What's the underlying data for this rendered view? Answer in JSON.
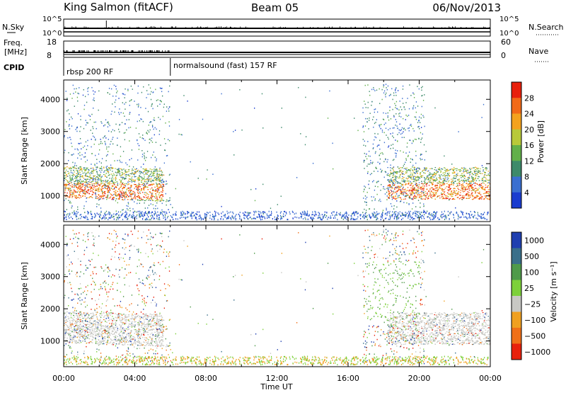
{
  "header": {
    "station": "King Salmon (fitACF)",
    "beam": "Beam 05",
    "date": "06/Nov/2013"
  },
  "summary_panels": {
    "nsky_label": "N.Sky",
    "nsky_ticks": [
      "10^5",
      "10^0"
    ],
    "nsearch_label": "N.Search",
    "nsearch_ticks": [
      "10^5",
      "10^0"
    ],
    "freq_label_1": "Freq.",
    "freq_label_2": "[MHz]",
    "freq_ticks": [
      "18",
      "8"
    ],
    "nave_label": "Nave",
    "nave_ticks": [
      "60",
      "0"
    ],
    "cpid_label": "CPID",
    "cpid_segments": [
      {
        "label": "rbsp 200 RF",
        "start_hour": 0,
        "end_hour": 6
      },
      {
        "label": "normalsound (fast) 157 RF",
        "start_hour": 6,
        "end_hour": 24
      }
    ]
  },
  "chart_data": [
    {
      "type": "heatmap",
      "quantity": "Power",
      "ylabel": "Slant Range [km]",
      "xlabel": "Time UT",
      "xlim_hours": [
        0,
        24
      ],
      "x_ticks": [
        "00:00",
        "04:00",
        "08:00",
        "12:00",
        "16:00",
        "20:00",
        "00:00"
      ],
      "ylim": [
        200,
        4600
      ],
      "y_ticks": [
        1000,
        2000,
        3000,
        4000
      ],
      "colorbar": {
        "label": "Power [dB]",
        "ticks": [
          4,
          8,
          12,
          16,
          20,
          24,
          28
        ],
        "range": [
          0,
          30
        ],
        "colors": [
          "#1a3ccf",
          "#3a6fd0",
          "#3d8a6a",
          "#62b04a",
          "#b8c93a",
          "#f4a21e",
          "#f26a18",
          "#e8200c"
        ]
      }
    },
    {
      "type": "heatmap",
      "quantity": "Velocity",
      "ylabel": "Slant Range [km]",
      "xlabel": "Time UT",
      "xlim_hours": [
        0,
        24
      ],
      "x_ticks": [
        "00:00",
        "04:00",
        "08:00",
        "12:00",
        "16:00",
        "20:00",
        "00:00"
      ],
      "ylim": [
        200,
        4600
      ],
      "y_ticks": [
        1000,
        2000,
        3000,
        4000
      ],
      "colorbar": {
        "label": "Velocity [m s⁻¹]",
        "ticks": [
          "1000",
          "500",
          "100",
          "25",
          "−25",
          "−100",
          "−500",
          "−1000"
        ],
        "colors": [
          "#1f3fb0",
          "#3a6f8a",
          "#4f9a4a",
          "#7dd03a",
          "#c8c8c4",
          "#f0a020",
          "#f07018",
          "#e8200c"
        ]
      }
    }
  ]
}
